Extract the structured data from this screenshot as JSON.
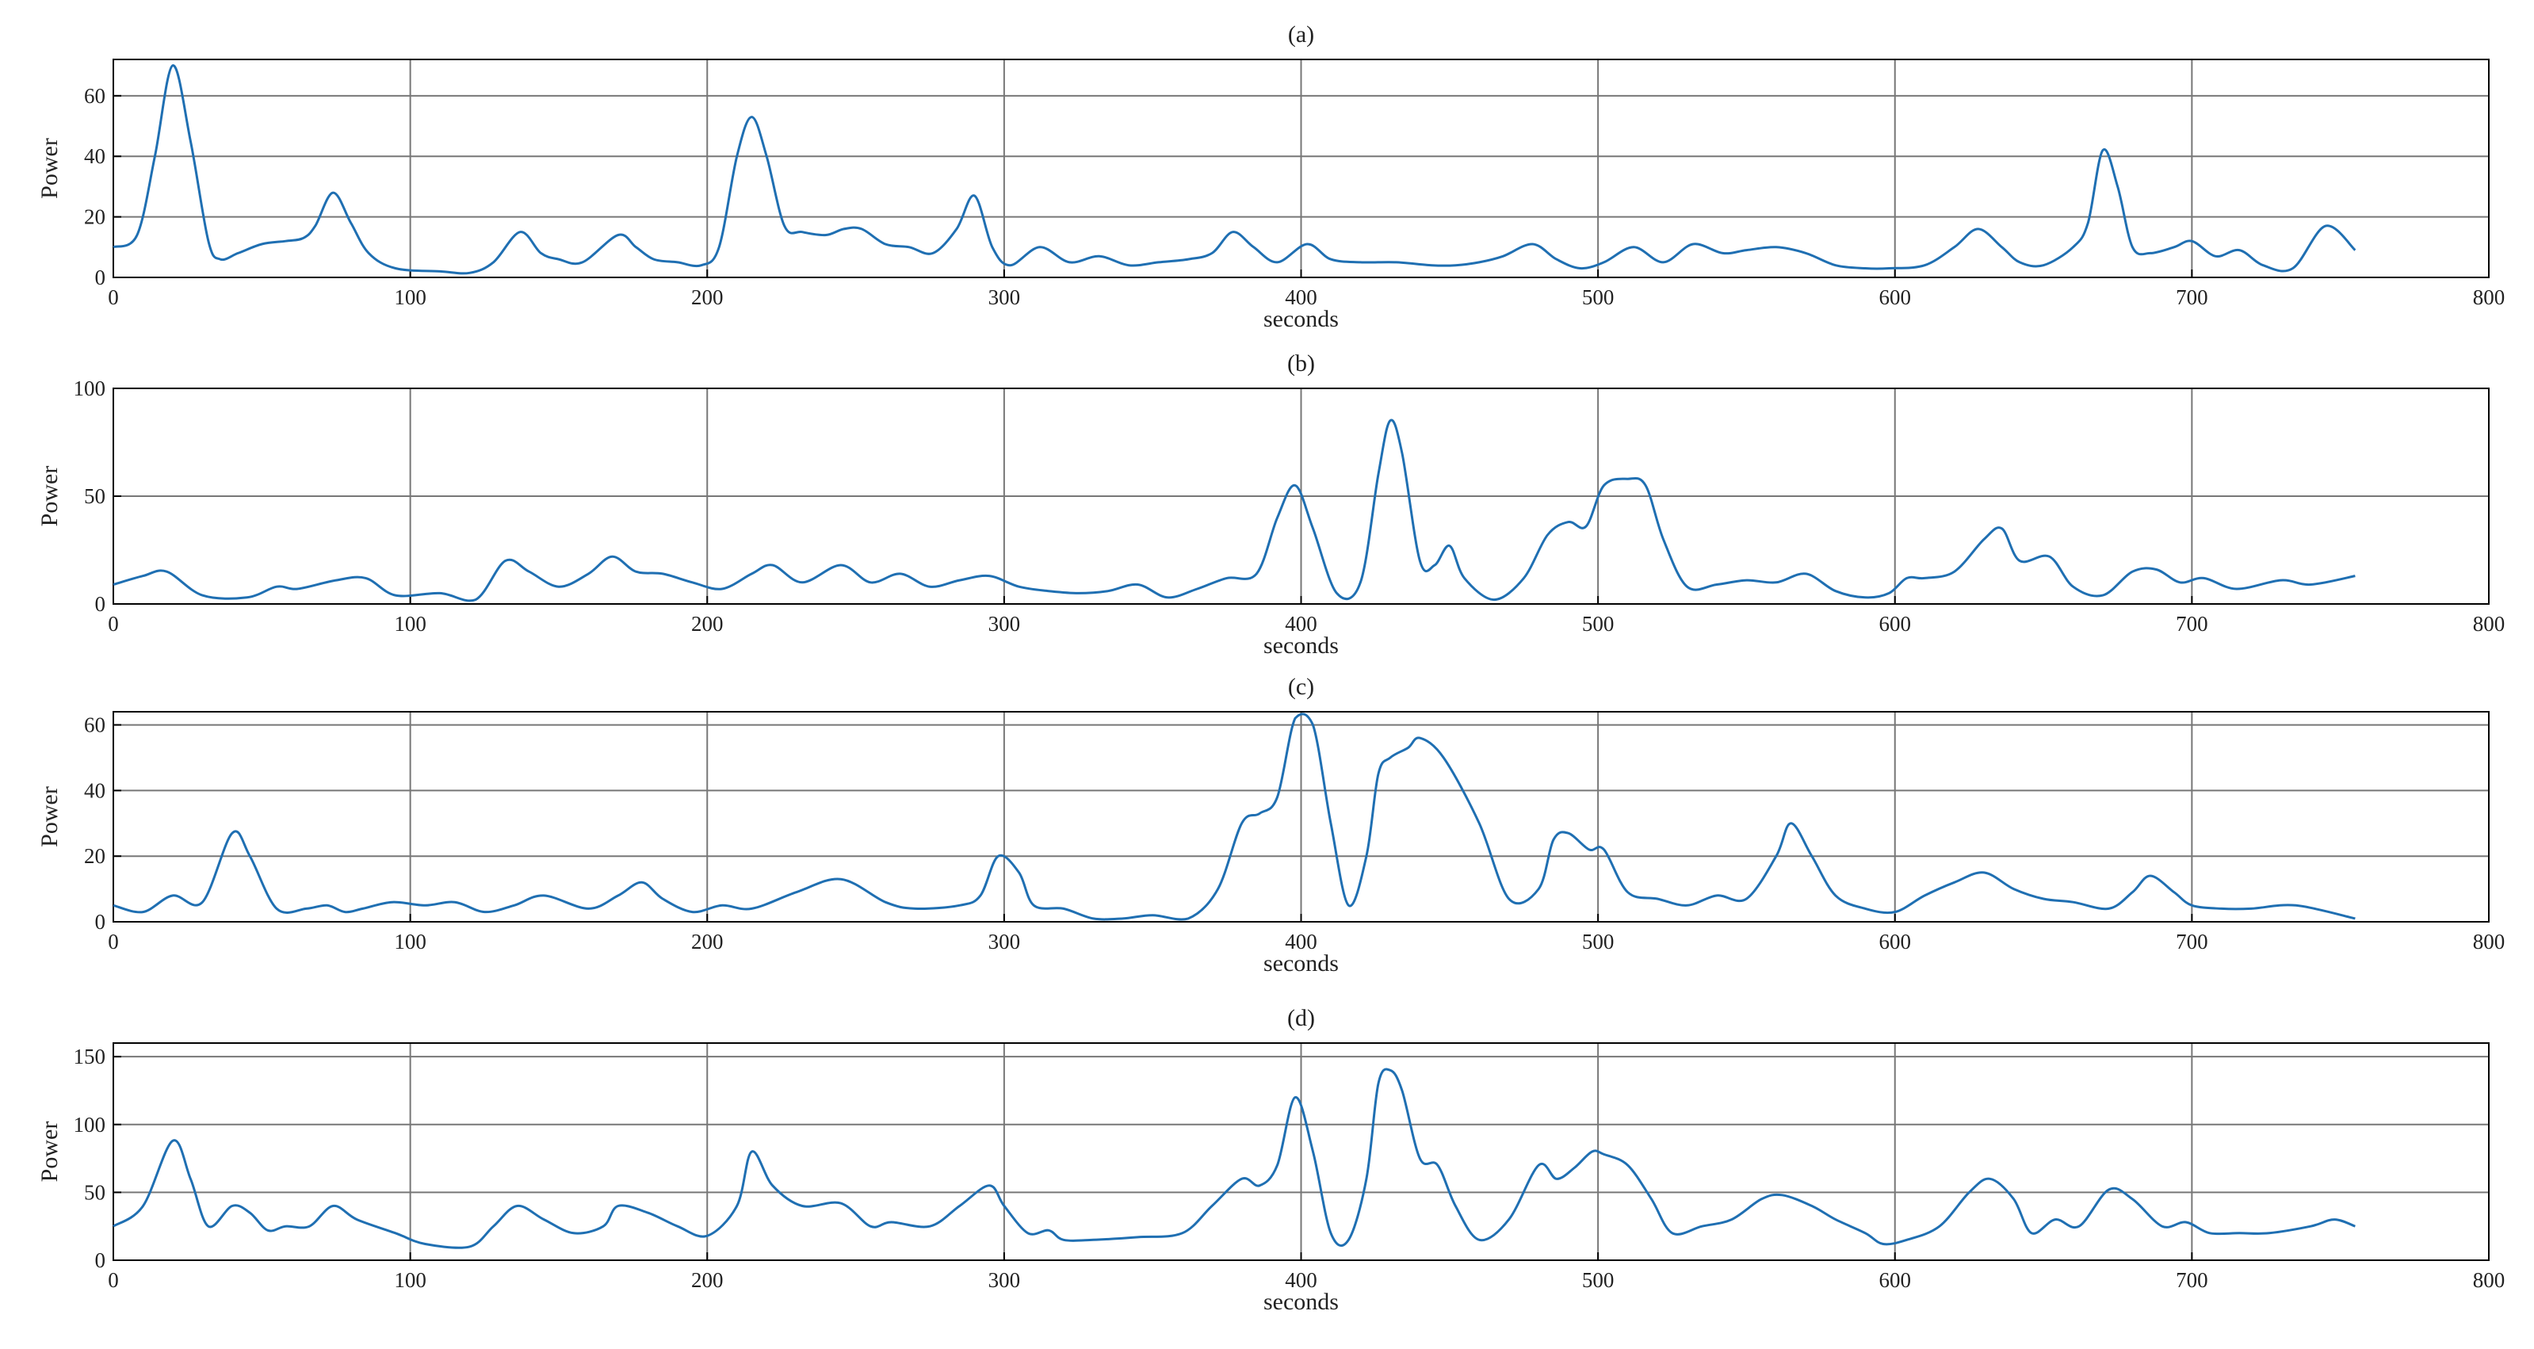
{
  "figure": {
    "colors": {
      "line": "#1f6fb2",
      "grid": "#777777",
      "axis": "#000000"
    }
  },
  "chart_data": [
    {
      "type": "line",
      "title": "(a)",
      "xlabel": "seconds",
      "ylabel": "Power",
      "xlim": [
        0,
        800
      ],
      "ylim": [
        0,
        72
      ],
      "xticks": [
        0,
        100,
        200,
        300,
        400,
        500,
        600,
        700,
        800
      ],
      "yticks": [
        0,
        20,
        40,
        60
      ],
      "grid": true,
      "series": [
        {
          "x": [
            0,
            8,
            14,
            20,
            26,
            32,
            36,
            42,
            50,
            58,
            64,
            68,
            74,
            80,
            86,
            95,
            110,
            120,
            128,
            137,
            144,
            150,
            158,
            170,
            176,
            182,
            190,
            198,
            204,
            210,
            215,
            220,
            226,
            232,
            240,
            246,
            252,
            260,
            268,
            276,
            284,
            290,
            296,
            302,
            312,
            322,
            332,
            342,
            352,
            362,
            370,
            377,
            384,
            392,
            402,
            410,
            420,
            432,
            444,
            452,
            460,
            468,
            478,
            486,
            494,
            502,
            512,
            522,
            532,
            542,
            550,
            560,
            570,
            580,
            590,
            598,
            610,
            620,
            628,
            636,
            642,
            650,
            660,
            665,
            670,
            675,
            680,
            686,
            694,
            700,
            708,
            716,
            724,
            734,
            745,
            755
          ],
          "values": [
            10,
            14,
            40,
            70,
            45,
            12,
            6,
            8,
            11,
            12,
            13,
            17,
            28,
            18,
            8,
            3,
            2,
            1.5,
            5,
            15,
            8,
            6,
            5,
            14,
            10,
            6,
            5,
            4,
            10,
            40,
            53,
            40,
            17,
            15,
            14,
            16,
            16,
            11,
            10,
            8,
            16,
            27,
            10,
            4,
            10,
            5,
            7,
            4,
            5,
            6,
            8,
            15,
            10,
            5,
            11,
            6,
            5,
            5,
            4,
            4,
            5,
            7,
            11,
            6,
            3,
            5,
            10,
            5,
            11,
            8,
            9,
            10,
            8,
            4,
            3,
            3,
            4,
            10,
            16,
            10,
            5,
            4,
            10,
            18,
            42,
            30,
            10,
            8,
            10,
            12,
            7,
            9,
            4,
            3,
            17,
            9
          ]
        }
      ]
    },
    {
      "type": "line",
      "title": "(b)",
      "xlabel": "seconds",
      "ylabel": "Power",
      "xlim": [
        0,
        800
      ],
      "ylim": [
        0,
        100
      ],
      "xticks": [
        0,
        100,
        200,
        300,
        400,
        500,
        600,
        700,
        800
      ],
      "yticks": [
        0,
        50,
        100
      ],
      "grid": true,
      "series": [
        {
          "x": [
            0,
            10,
            18,
            30,
            45,
            55,
            62,
            75,
            85,
            95,
            110,
            122,
            132,
            140,
            150,
            160,
            168,
            176,
            185,
            195,
            205,
            215,
            222,
            232,
            245,
            255,
            265,
            275,
            285,
            295,
            305,
            315,
            325,
            335,
            345,
            355,
            365,
            375,
            385,
            392,
            398,
            404,
            412,
            420,
            426,
            430,
            434,
            440,
            445,
            450,
            455,
            465,
            475,
            483,
            490,
            496,
            502,
            510,
            516,
            522,
            530,
            540,
            550,
            560,
            570,
            580,
            590,
            598,
            604,
            610,
            620,
            630,
            636,
            642,
            652,
            660,
            670,
            680,
            688,
            696,
            704,
            715,
            730,
            740,
            755
          ],
          "values": [
            9,
            13,
            15,
            4,
            3,
            8,
            7,
            11,
            12,
            4,
            5,
            2,
            20,
            15,
            8,
            14,
            22,
            15,
            14,
            10,
            7,
            14,
            18,
            10,
            18,
            10,
            14,
            8,
            11,
            13,
            8,
            6,
            5,
            6,
            9,
            3,
            7,
            12,
            14,
            40,
            55,
            35,
            5,
            10,
            60,
            85,
            70,
            20,
            18,
            27,
            12,
            2,
            12,
            32,
            38,
            36,
            55,
            58,
            55,
            30,
            8,
            9,
            11,
            10,
            14,
            6,
            3,
            5,
            12,
            12,
            15,
            30,
            35,
            20,
            22,
            8,
            4,
            15,
            16,
            10,
            12,
            7,
            11,
            9,
            13
          ]
        }
      ]
    },
    {
      "type": "line",
      "title": "(c)",
      "xlabel": "seconds",
      "ylabel": "Power",
      "xlim": [
        0,
        800
      ],
      "ylim": [
        0,
        64
      ],
      "xticks": [
        0,
        100,
        200,
        300,
        400,
        500,
        600,
        700,
        800
      ],
      "yticks": [
        0,
        20,
        40,
        60
      ],
      "grid": true,
      "series": [
        {
          "x": [
            0,
            10,
            20,
            30,
            40,
            46,
            55,
            65,
            72,
            78,
            84,
            94,
            105,
            115,
            125,
            135,
            145,
            160,
            170,
            178,
            185,
            195,
            205,
            215,
            230,
            245,
            260,
            270,
            285,
            292,
            298,
            305,
            310,
            320,
            330,
            340,
            350,
            362,
            372,
            380,
            386,
            392,
            398,
            404,
            410,
            416,
            422,
            426,
            430,
            436,
            440,
            448,
            460,
            470,
            480,
            485,
            490,
            497,
            502,
            510,
            520,
            530,
            540,
            550,
            560,
            565,
            572,
            580,
            590,
            600,
            610,
            620,
            630,
            640,
            650,
            660,
            672,
            680,
            686,
            694,
            700,
            710,
            720,
            735,
            755
          ],
          "values": [
            5,
            3,
            8,
            6,
            27,
            20,
            4,
            4,
            5,
            3,
            4,
            6,
            5,
            6,
            3,
            5,
            8,
            4,
            8,
            12,
            7,
            3,
            5,
            4,
            9,
            13,
            6,
            4,
            5,
            8,
            20,
            15,
            5,
            4,
            1,
            1,
            2,
            1,
            10,
            30,
            33,
            38,
            62,
            60,
            30,
            5,
            20,
            45,
            50,
            53,
            56,
            50,
            30,
            7,
            10,
            25,
            27,
            22,
            22,
            9,
            7,
            5,
            8,
            7,
            20,
            30,
            20,
            8,
            4,
            3,
            8,
            12,
            15,
            10,
            7,
            6,
            4,
            9,
            14,
            9,
            5,
            4,
            4,
            5,
            1
          ]
        }
      ]
    },
    {
      "type": "line",
      "title": "(d)",
      "xlabel": "seconds",
      "ylabel": "Power",
      "xlim": [
        0,
        800
      ],
      "ylim": [
        0,
        160
      ],
      "xticks": [
        0,
        100,
        200,
        300,
        400,
        500,
        600,
        700,
        800
      ],
      "yticks": [
        0,
        50,
        100,
        150
      ],
      "grid": true,
      "series": [
        {
          "x": [
            0,
            10,
            20,
            26,
            32,
            40,
            46,
            52,
            58,
            66,
            74,
            82,
            95,
            105,
            120,
            128,
            136,
            145,
            155,
            165,
            170,
            180,
            190,
            200,
            210,
            215,
            222,
            232,
            245,
            255,
            262,
            275,
            285,
            295,
            300,
            308,
            315,
            320,
            330,
            345,
            360,
            370,
            380,
            386,
            392,
            398,
            404,
            410,
            416,
            422,
            426,
            430,
            434,
            440,
            446,
            452,
            460,
            470,
            480,
            486,
            492,
            498,
            502,
            510,
            518,
            525,
            535,
            545,
            555,
            562,
            572,
            580,
            590,
            596,
            604,
            615,
            625,
            632,
            640,
            646,
            654,
            662,
            672,
            680,
            690,
            698,
            706,
            716,
            726,
            740,
            748,
            755
          ],
          "values": [
            25,
            40,
            88,
            60,
            25,
            40,
            35,
            22,
            25,
            25,
            40,
            30,
            20,
            12,
            10,
            25,
            40,
            30,
            20,
            25,
            40,
            35,
            25,
            18,
            40,
            80,
            55,
            40,
            42,
            25,
            28,
            25,
            40,
            55,
            40,
            20,
            22,
            15,
            15,
            17,
            20,
            40,
            60,
            55,
            70,
            120,
            80,
            20,
            15,
            60,
            130,
            140,
            125,
            75,
            70,
            40,
            15,
            30,
            70,
            60,
            68,
            80,
            78,
            70,
            45,
            20,
            25,
            30,
            45,
            48,
            40,
            30,
            20,
            12,
            15,
            25,
            50,
            60,
            45,
            20,
            30,
            25,
            52,
            45,
            25,
            28,
            20,
            20,
            20,
            25,
            30,
            25
          ]
        }
      ]
    }
  ]
}
